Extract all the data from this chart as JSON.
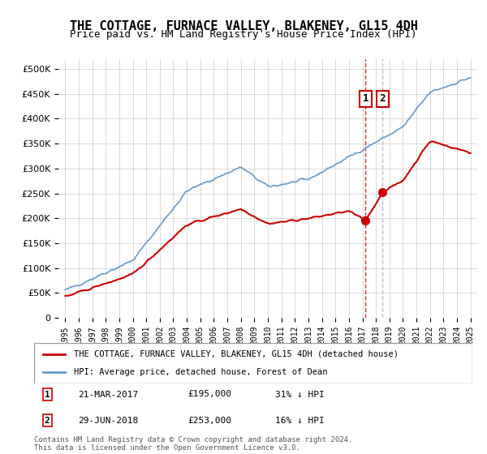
{
  "title": "THE COTTAGE, FURNACE VALLEY, BLAKENEY, GL15 4DH",
  "subtitle": "Price paid vs. HM Land Registry's House Price Index (HPI)",
  "legend1": "THE COTTAGE, FURNACE VALLEY, BLAKENEY, GL15 4DH (detached house)",
  "legend2": "HPI: Average price, detached house, Forest of Dean",
  "footnote": "Contains HM Land Registry data © Crown copyright and database right 2024.\nThis data is licensed under the Open Government Licence v3.0.",
  "price_color": "#cc0000",
  "hpi_color": "#6699cc",
  "marker_color": "#cc0000",
  "vline_color": "#cc0000",
  "annotation_box_color": "#cc0000",
  "sale1_date_x": 2017.22,
  "sale1_label": "1",
  "sale1_price": 195000,
  "sale1_info": "21-MAR-2017    £195,000    31% ↓ HPI",
  "sale2_date_x": 2018.5,
  "sale2_label": "2",
  "sale2_price": 253000,
  "sale2_info": "29-JUN-2018    £253,000    16% ↓ HPI",
  "ylim": [
    0,
    520000
  ],
  "yticks": [
    0,
    50000,
    100000,
    150000,
    200000,
    250000,
    300000,
    350000,
    400000,
    450000,
    500000
  ],
  "xlim": [
    1994.5,
    2025.5
  ],
  "xticks": [
    1995,
    1996,
    1997,
    1998,
    1999,
    2000,
    2001,
    2002,
    2003,
    2004,
    2005,
    2006,
    2007,
    2008,
    2009,
    2010,
    2011,
    2012,
    2013,
    2014,
    2015,
    2016,
    2017,
    2018,
    2019,
    2020,
    2021,
    2022,
    2023,
    2024,
    2025
  ],
  "background_color": "#ffffff",
  "plot_bg_color": "#ffffff",
  "grid_color": "#cccccc"
}
